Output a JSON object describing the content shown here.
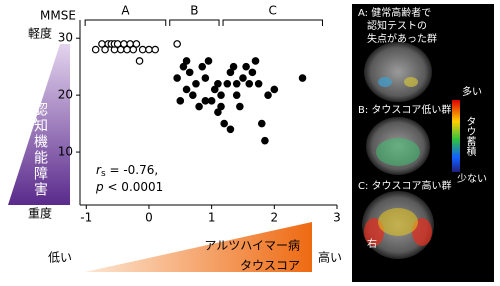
{
  "chart_data": {
    "type": "scatter",
    "y_label": "MMSE",
    "xlim": [
      -1.1,
      3
    ],
    "xticks": [
      -1,
      0,
      1,
      2,
      3
    ],
    "ylim": [
      0.7,
      33.2
    ],
    "yticks": [
      10,
      20,
      30
    ],
    "groups": [
      {
        "label": "A",
        "range": [
          -1.05,
          0.3
        ]
      },
      {
        "label": "B",
        "range": [
          0.3,
          1.15
        ]
      },
      {
        "label": "C",
        "range": [
          1.15,
          2.8
        ]
      }
    ],
    "series": [
      {
        "marker": "open",
        "color": "#000000",
        "x": [
          -0.85,
          -0.75,
          -0.7,
          -0.65,
          -0.6,
          -0.55,
          -0.55,
          -0.5,
          -0.45,
          -0.4,
          -0.35,
          -0.3,
          -0.25,
          -0.2,
          -0.15,
          -0.1,
          0.0,
          0.1,
          0.45
        ],
        "values": [
          28,
          29,
          28,
          29,
          29,
          28,
          29,
          29,
          28,
          29,
          28,
          29,
          28,
          29,
          26,
          28,
          28,
          28,
          29
        ]
      },
      {
        "marker": "filled",
        "color": "#000000",
        "x": [
          0.45,
          0.5,
          0.55,
          0.6,
          0.6,
          0.65,
          0.7,
          0.75,
          0.8,
          0.85,
          0.9,
          0.9,
          0.95,
          1.0,
          1.05,
          1.1,
          1.1,
          1.15,
          1.15,
          1.2,
          1.25,
          1.3,
          1.3,
          1.35,
          1.4,
          1.4,
          1.45,
          1.5,
          1.55,
          1.6,
          1.65,
          1.7,
          1.75,
          1.8,
          1.85,
          1.9,
          2.0,
          2.45
        ],
        "values": [
          23,
          19,
          25,
          26,
          21,
          24,
          20,
          22,
          18,
          25,
          23,
          19,
          26,
          19,
          21,
          22,
          17,
          20,
          18,
          15,
          22,
          24,
          14,
          25,
          20,
          22,
          18,
          23,
          25,
          22,
          24,
          26,
          22,
          15,
          12,
          20,
          21,
          23
        ]
      }
    ],
    "annotation": {
      "r_symbol": "r",
      "r_sub": "s",
      "r_text": " = -0.76,",
      "p_symbol": "p",
      "p_text": " < 0.0001"
    },
    "y_scale": {
      "top": "軽度",
      "middle": "認知機能障害",
      "bottom": "重度"
    },
    "x_scale": {
      "left": "低い",
      "line1": "アルツハイマー病",
      "line2": "タウスコア",
      "right": "高い"
    }
  },
  "panel": {
    "a_line1": "A: 健常高齢者で",
    "a_line2": "認知テストの",
    "a_line3": "失点があった群",
    "b": "B: タウスコア低い群",
    "c": "C: タウスコア高い群",
    "bar_top": "多い",
    "bar_label": "タウ蓄積",
    "bar_bottom": "少ない",
    "side": "右"
  }
}
